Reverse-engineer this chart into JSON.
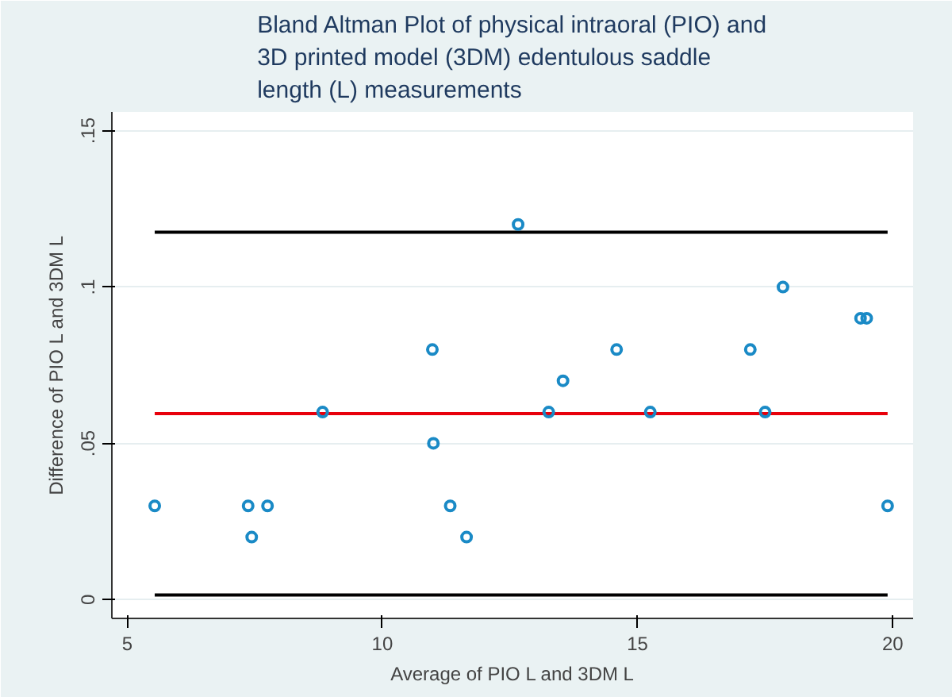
{
  "chart_data": {
    "type": "scatter",
    "title": "Bland Altman Plot of physical intraoral (PIO) and\n3D printed model (3DM) edentulous saddle\nlength (L) measurements",
    "xlabel": "Average of PIO L and 3DM L",
    "ylabel": "Difference of PIO L and 3DM L",
    "x": [
      5.54,
      7.37,
      7.44,
      7.75,
      8.83,
      10.98,
      11.0,
      11.33,
      11.65,
      12.66,
      13.26,
      13.54,
      14.59,
      15.25,
      17.21,
      17.5,
      17.85,
      19.37,
      19.49,
      19.9
    ],
    "series": [
      {
        "color": "#1a8ac6",
        "values": [
          0.03,
          0.03,
          0.02,
          0.03,
          0.06,
          0.08,
          0.05,
          0.03,
          0.02,
          0.12,
          0.06,
          0.07,
          0.08,
          0.06,
          0.08,
          0.06,
          0.1,
          0.09,
          0.09,
          0.03
        ]
      }
    ],
    "marker": "circle",
    "xlim": [
      4.7,
      20.4
    ],
    "ylim": [
      -0.006,
      0.156
    ],
    "xticks": [
      5,
      10,
      15,
      20
    ],
    "yticks": [
      {
        "value": 0,
        "label": "0"
      },
      {
        "value": 0.05,
        "label": ".05"
      },
      {
        "value": 0.1,
        "label": ".1"
      },
      {
        "value": 0.15,
        "label": ".15"
      }
    ],
    "grid": "y",
    "ref_lines": [
      {
        "axis": "y",
        "value": 0.1175,
        "color": "#000000"
      },
      {
        "axis": "y",
        "value": 0.0595,
        "color": "#e8000b"
      },
      {
        "axis": "y",
        "value": 0.0015,
        "color": "#000000"
      }
    ]
  }
}
